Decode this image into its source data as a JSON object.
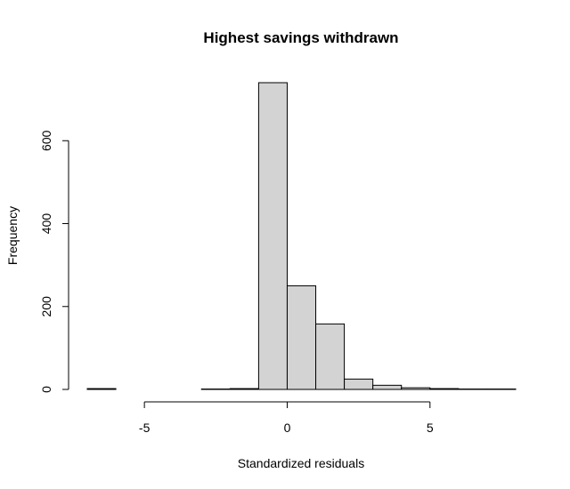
{
  "chart_data": {
    "type": "bar",
    "title": "Highest savings withdrawn",
    "xlabel": "Standardized residuals",
    "ylabel": "Frequency",
    "bar_color": "#d3d3d3",
    "border_color": "#000000",
    "xlim": [
      -7,
      8
    ],
    "ylim": [
      0,
      740
    ],
    "x_ticks": [
      -5,
      0,
      5
    ],
    "x_tick_labels": [
      "-5",
      "0",
      "5"
    ],
    "y_ticks": [
      0,
      200,
      400,
      600
    ],
    "y_tick_labels": [
      "0",
      "200",
      "400",
      "600"
    ],
    "bins": [
      {
        "x0": -7,
        "x1": -6,
        "count": 2
      },
      {
        "x0": -6,
        "x1": -5,
        "count": 0
      },
      {
        "x0": -5,
        "x1": -4,
        "count": 0
      },
      {
        "x0": -4,
        "x1": -3,
        "count": 0
      },
      {
        "x0": -3,
        "x1": -2,
        "count": 1
      },
      {
        "x0": -2,
        "x1": -1,
        "count": 2
      },
      {
        "x0": -1,
        "x1": 0,
        "count": 740
      },
      {
        "x0": 0,
        "x1": 1,
        "count": 250
      },
      {
        "x0": 1,
        "x1": 2,
        "count": 158
      },
      {
        "x0": 2,
        "x1": 3,
        "count": 25
      },
      {
        "x0": 3,
        "x1": 4,
        "count": 10
      },
      {
        "x0": 4,
        "x1": 5,
        "count": 4
      },
      {
        "x0": 5,
        "x1": 6,
        "count": 2
      },
      {
        "x0": 6,
        "x1": 7,
        "count": 1
      },
      {
        "x0": 7,
        "x1": 8,
        "count": 1
      }
    ]
  }
}
